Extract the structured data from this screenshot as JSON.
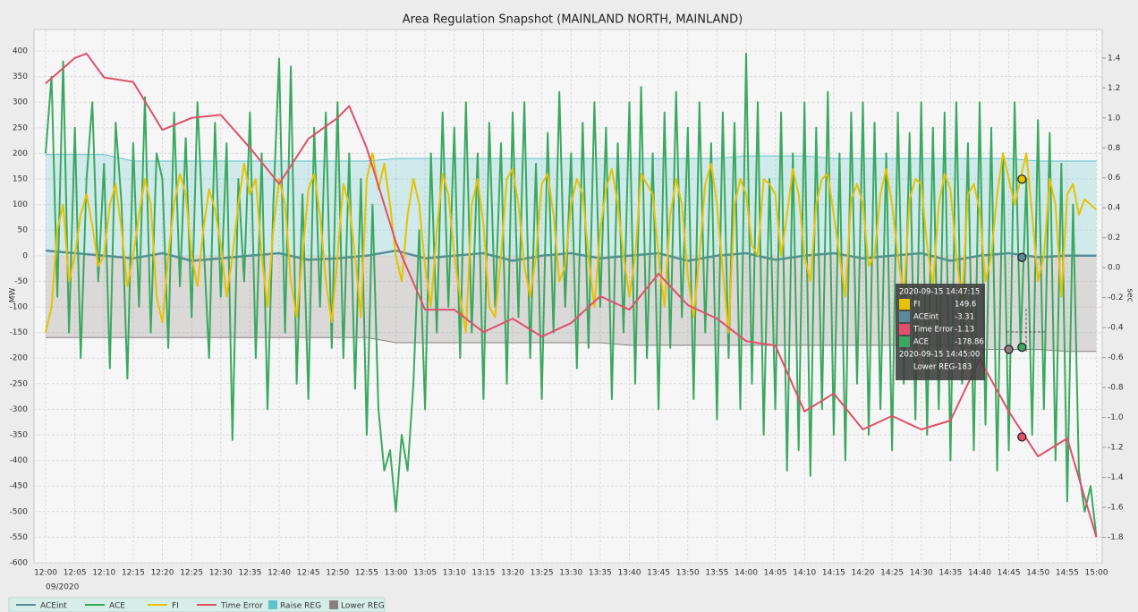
{
  "chart_data": {
    "type": "line",
    "title": "Area Regulation Snapshot (MAINLAND NORTH, MAINLAND)",
    "y_label": "MW",
    "y2_label": "sec",
    "date_label": "09/2020",
    "xlim": [
      "11:58",
      "15:01"
    ],
    "ylim": [
      -600,
      442
    ],
    "y2lim": [
      -1.97,
      1.59
    ],
    "grid": true,
    "legend": "bottom-left",
    "xticks": [
      "12:00",
      "12:05",
      "12:10",
      "12:15",
      "12:20",
      "12:25",
      "12:30",
      "12:35",
      "12:40",
      "12:45",
      "12:50",
      "12:55",
      "13:00",
      "13:05",
      "13:10",
      "13:15",
      "13:20",
      "13:25",
      "13:30",
      "13:35",
      "13:40",
      "13:45",
      "13:50",
      "13:55",
      "14:00",
      "14:05",
      "14:10",
      "14:15",
      "14:20",
      "14:25",
      "14:30",
      "14:35",
      "14:40",
      "14:45",
      "14:50",
      "14:55",
      "15:00"
    ],
    "yticks": [
      -600,
      -550,
      -500,
      -450,
      -400,
      -350,
      -300,
      -250,
      -200,
      -150,
      -100,
      -50,
      0,
      50,
      100,
      150,
      200,
      250,
      300,
      350,
      400
    ],
    "y2ticks": [
      -1.8,
      -1.6,
      -1.4,
      -1.2,
      {
        "value": -1,
        "label": "-1.0"
      },
      -0.8,
      -0.6,
      -0.4,
      -0.2,
      {
        "value": 0,
        "label": "0.0"
      },
      0.2,
      0.4,
      0.6,
      0.8,
      {
        "value": 1,
        "label": "1.0"
      },
      1.2,
      1.4
    ],
    "x": [
      "12:00",
      "12:01",
      "12:02",
      "12:03",
      "12:04",
      "12:05",
      "12:06",
      "12:07",
      "12:08",
      "12:09",
      "12:10",
      "12:11",
      "12:12",
      "12:13",
      "12:14",
      "12:15",
      "12:16",
      "12:17",
      "12:18",
      "12:19",
      "12:20",
      "12:21",
      "12:22",
      "12:23",
      "12:24",
      "12:25",
      "12:26",
      "12:27",
      "12:28",
      "12:29",
      "12:30",
      "12:31",
      "12:32",
      "12:33",
      "12:34",
      "12:35",
      "12:36",
      "12:37",
      "12:38",
      "12:39",
      "12:40",
      "12:41",
      "12:42",
      "12:43",
      "12:44",
      "12:45",
      "12:46",
      "12:47",
      "12:48",
      "12:49",
      "12:50",
      "12:51",
      "12:52",
      "12:53",
      "12:54",
      "12:55",
      "12:56",
      "12:57",
      "12:58",
      "12:59",
      "13:00",
      "13:01",
      "13:02",
      "13:03",
      "13:04",
      "13:05",
      "13:06",
      "13:07",
      "13:08",
      "13:09",
      "13:10",
      "13:11",
      "13:12",
      "13:13",
      "13:14",
      "13:15",
      "13:16",
      "13:17",
      "13:18",
      "13:19",
      "13:20",
      "13:21",
      "13:22",
      "13:23",
      "13:24",
      "13:25",
      "13:26",
      "13:27",
      "13:28",
      "13:29",
      "13:30",
      "13:31",
      "13:32",
      "13:33",
      "13:34",
      "13:35",
      "13:36",
      "13:37",
      "13:38",
      "13:39",
      "13:40",
      "13:41",
      "13:42",
      "13:43",
      "13:44",
      "13:45",
      "13:46",
      "13:47",
      "13:48",
      "13:49",
      "13:50",
      "13:51",
      "13:52",
      "13:53",
      "13:54",
      "13:55",
      "13:56",
      "13:57",
      "13:58",
      "13:59",
      "14:00",
      "14:01",
      "14:02",
      "14:03",
      "14:04",
      "14:05",
      "14:06",
      "14:07",
      "14:08",
      "14:09",
      "14:10",
      "14:11",
      "14:12",
      "14:13",
      "14:14",
      "14:15",
      "14:16",
      "14:17",
      "14:18",
      "14:19",
      "14:20",
      "14:21",
      "14:22",
      "14:23",
      "14:24",
      "14:25",
      "14:26",
      "14:27",
      "14:28",
      "14:29",
      "14:30",
      "14:31",
      "14:32",
      "14:33",
      "14:34",
      "14:35",
      "14:36",
      "14:37",
      "14:38",
      "14:39",
      "14:40",
      "14:41",
      "14:42",
      "14:43",
      "14:44",
      "14:45",
      "14:46",
      "14:47",
      "14:48",
      "14:49",
      "14:50",
      "14:51",
      "14:52",
      "14:53",
      "14:54",
      "14:55",
      "14:56",
      "14:57",
      "14:58",
      "14:59",
      "15:00"
    ],
    "series": [
      {
        "name": "ACEint",
        "color": "#5b8b9b",
        "style": "line",
        "axis": "y",
        "x": [
          "12:00",
          "12:05",
          "12:10",
          "12:15",
          "12:20",
          "12:25",
          "12:30",
          "12:35",
          "12:40",
          "12:45",
          "12:50",
          "12:55",
          "13:00",
          "13:05",
          "13:10",
          "13:15",
          "13:20",
          "13:25",
          "13:30",
          "13:35",
          "13:40",
          "13:45",
          "13:50",
          "13:55",
          "14:00",
          "14:05",
          "14:10",
          "14:15",
          "14:20",
          "14:25",
          "14:30",
          "14:35",
          "14:40",
          "14:45",
          "14:50",
          "14:55",
          "15:00"
        ],
        "values": [
          10,
          5,
          0,
          -5,
          5,
          -10,
          -5,
          0,
          5,
          -8,
          -5,
          0,
          10,
          -5,
          0,
          5,
          -10,
          0,
          5,
          -5,
          0,
          5,
          -10,
          0,
          5,
          -8,
          0,
          5,
          -5,
          0,
          5,
          -10,
          0,
          5,
          -3,
          0,
          0
        ]
      },
      {
        "name": "ACE",
        "color": "#3aa860",
        "style": "line",
        "axis": "y",
        "values": [
          200,
          350,
          -80,
          380,
          -150,
          250,
          -200,
          150,
          300,
          -50,
          180,
          -220,
          260,
          100,
          -240,
          220,
          -100,
          310,
          -150,
          200,
          150,
          -180,
          280,
          -60,
          230,
          -120,
          300,
          40,
          -200,
          260,
          -80,
          220,
          -360,
          150,
          -50,
          280,
          -200,
          200,
          -300,
          100,
          385,
          -150,
          370,
          -250,
          120,
          -280,
          250,
          -100,
          280,
          -180,
          300,
          -200,
          200,
          -260,
          150,
          -350,
          100,
          -300,
          -420,
          -380,
          -500,
          -350,
          -420,
          -250,
          50,
          -300,
          200,
          -150,
          280,
          -100,
          250,
          -200,
          300,
          -150,
          200,
          -280,
          260,
          -100,
          220,
          -250,
          280,
          -120,
          300,
          -200,
          180,
          -280,
          240,
          -150,
          320,
          -100,
          200,
          -220,
          260,
          -180,
          300,
          -100,
          250,
          -280,
          220,
          -150,
          300,
          -250,
          330,
          -200,
          200,
          -300,
          280,
          -180,
          320,
          -120,
          250,
          -280,
          300,
          -150,
          220,
          -320,
          280,
          -200,
          260,
          -300,
          395,
          -250,
          300,
          -350,
          150,
          -300,
          280,
          -420,
          200,
          -380,
          300,
          -430,
          250,
          -300,
          320,
          -350,
          200,
          -400,
          280,
          -250,
          300,
          -350,
          260,
          -300,
          200,
          -380,
          280,
          -250,
          240,
          -320,
          300,
          -350,
          250,
          -300,
          280,
          -400,
          300,
          -250,
          220,
          -380,
          300,
          -330,
          250,
          -420,
          200,
          -380,
          300,
          -179,
          150,
          -350,
          265,
          -300,
          240,
          -400,
          180,
          -480,
          100,
          -420,
          -500,
          -450,
          -550
        ]
      },
      {
        "name": "FI",
        "color": "#e6c200",
        "style": "line",
        "axis": "y",
        "values": [
          -150,
          -100,
          50,
          100,
          -50,
          0,
          80,
          120,
          60,
          -20,
          0,
          100,
          140,
          50,
          -60,
          0,
          80,
          150,
          100,
          -80,
          -130,
          0,
          100,
          160,
          120,
          0,
          -60,
          50,
          130,
          90,
          20,
          -80,
          0,
          100,
          180,
          120,
          150,
          0,
          -100,
          50,
          150,
          100,
          -50,
          -120,
          0,
          130,
          160,
          80,
          -50,
          -130,
          0,
          140,
          100,
          0,
          -120,
          150,
          200,
          130,
          180,
          100,
          0,
          -50,
          80,
          150,
          100,
          -20,
          -100,
          50,
          160,
          120,
          0,
          -80,
          -150,
          100,
          150,
          60,
          -100,
          -120,
          0,
          150,
          170,
          100,
          -20,
          -80,
          0,
          140,
          160,
          80,
          -50,
          -20,
          100,
          150,
          120,
          0,
          -100,
          50,
          130,
          170,
          100,
          0,
          -80,
          0,
          160,
          140,
          120,
          0,
          -100,
          80,
          150,
          100,
          -40,
          -120,
          0,
          140,
          180,
          100,
          -30,
          -150,
          100,
          150,
          120,
          20,
          0,
          150,
          140,
          120,
          0,
          80,
          170,
          120,
          0,
          -50,
          100,
          150,
          160,
          80,
          0,
          -80,
          110,
          140,
          100,
          -20,
          0,
          120,
          170,
          100,
          0,
          -80,
          110,
          150,
          140,
          20,
          -60,
          100,
          160,
          130,
          0,
          -90,
          120,
          140,
          90,
          -50,
          0,
          120,
          200,
          150,
          100,
          149.6,
          200,
          80,
          -50,
          0,
          150,
          100,
          -80,
          120,
          140,
          80,
          110,
          100,
          90
        ]
      },
      {
        "name": "Time Error",
        "color": "#e0506a",
        "style": "line",
        "axis": "y2",
        "x": [
          "12:00",
          "12:05",
          "12:07",
          "12:10",
          "12:15",
          "12:20",
          "12:25",
          "12:30",
          "12:35",
          "12:40",
          "12:45",
          "12:50",
          "12:52",
          "12:55",
          "13:00",
          "13:05",
          "13:10",
          "13:15",
          "13:20",
          "13:25",
          "13:30",
          "13:35",
          "13:40",
          "13:45",
          "13:50",
          "13:55",
          "14:00",
          "14:05",
          "14:10",
          "14:15",
          "14:20",
          "14:25",
          "14:30",
          "14:35",
          "14:40",
          "14:45",
          "14:50",
          "14:55",
          "15:00"
        ],
        "values": [
          1.23,
          1.4,
          1.43,
          1.27,
          1.24,
          0.92,
          1.0,
          1.02,
          0.8,
          0.56,
          0.86,
          1.0,
          1.08,
          0.8,
          0.17,
          -0.28,
          -0.28,
          -0.43,
          -0.34,
          -0.46,
          -0.37,
          -0.19,
          -0.28,
          -0.04,
          -0.25,
          -0.34,
          -0.49,
          -0.52,
          -0.96,
          -0.84,
          -1.08,
          -0.99,
          -1.08,
          -1.02,
          -0.61,
          -0.96,
          -1.26,
          -1.14,
          -1.8
        ]
      },
      {
        "name": "Raise REG",
        "color": "#5fc3cc",
        "style": "area",
        "axis": "y",
        "x": [
          "12:00",
          "12:05",
          "12:10",
          "12:15",
          "12:20",
          "12:25",
          "12:30",
          "12:35",
          "12:40",
          "12:45",
          "12:50",
          "12:55",
          "13:00",
          "13:05",
          "13:10",
          "13:15",
          "13:20",
          "13:25",
          "13:30",
          "13:35",
          "13:40",
          "13:45",
          "13:50",
          "13:55",
          "14:00",
          "14:05",
          "14:10",
          "14:15",
          "14:20",
          "14:25",
          "14:30",
          "14:35",
          "14:40",
          "14:45",
          "14:50",
          "14:55",
          "15:00"
        ],
        "values": [
          198,
          198,
          198,
          185,
          185,
          185,
          185,
          185,
          185,
          185,
          185,
          185,
          190,
          190,
          190,
          190,
          190,
          190,
          190,
          190,
          190,
          190,
          190,
          190,
          195,
          195,
          195,
          190,
          190,
          190,
          190,
          190,
          190,
          190,
          185,
          185,
          185
        ]
      },
      {
        "name": "Lower REG",
        "color": "#8a7f7f",
        "style": "area",
        "axis": "y",
        "x": [
          "12:00",
          "12:05",
          "12:10",
          "12:15",
          "12:20",
          "12:25",
          "12:30",
          "12:35",
          "12:40",
          "12:45",
          "12:50",
          "12:55",
          "13:00",
          "13:05",
          "13:10",
          "13:15",
          "13:20",
          "13:25",
          "13:30",
          "13:35",
          "13:40",
          "13:45",
          "13:50",
          "13:55",
          "14:00",
          "14:05",
          "14:10",
          "14:15",
          "14:20",
          "14:25",
          "14:30",
          "14:35",
          "14:40",
          "14:45",
          "14:50",
          "14:55",
          "15:00"
        ],
        "values": [
          -160,
          -160,
          -160,
          -160,
          -160,
          -160,
          -160,
          -160,
          -160,
          -160,
          -160,
          -160,
          -170,
          -170,
          -170,
          -170,
          -170,
          -170,
          -170,
          -170,
          -175,
          -175,
          -175,
          -175,
          -175,
          -175,
          -175,
          -175,
          -175,
          -175,
          -175,
          -175,
          -183,
          -183,
          -183,
          -187,
          -187
        ]
      }
    ],
    "tooltip": {
      "time": "2020-09-15 14:47:15",
      "rows": [
        {
          "name": "FI",
          "value": 149.6
        },
        {
          "name": "ACEint",
          "value": -3.31
        },
        {
          "name": "Time Error",
          "value": -1.13
        },
        {
          "name": "ACE",
          "value": -178.86
        }
      ],
      "time2": "2020-09-15 14:45:00",
      "rows2": [
        {
          "name": "Lower REG",
          "value": -183
        }
      ]
    }
  }
}
